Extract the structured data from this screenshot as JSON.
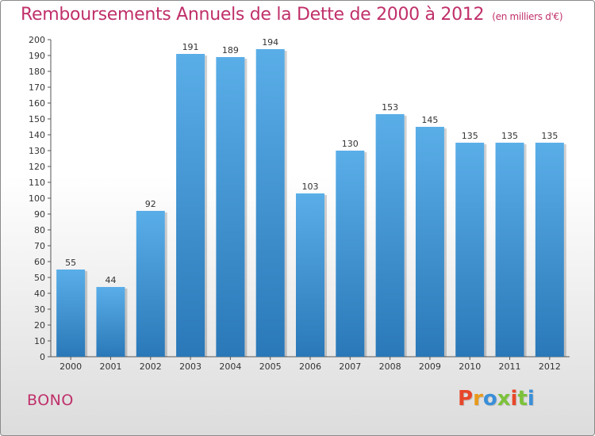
{
  "chart_data": {
    "type": "bar",
    "title": "Remboursements Annuels de la Dette de 2000 à 2012",
    "subtitle": "(en milliers d'€)",
    "categories": [
      "2000",
      "2001",
      "2002",
      "2003",
      "2004",
      "2005",
      "2006",
      "2007",
      "2008",
      "2009",
      "2010",
      "2011",
      "2012"
    ],
    "values": [
      55,
      44,
      92,
      191,
      189,
      194,
      103,
      130,
      153,
      145,
      135,
      135,
      135
    ],
    "ylim": [
      0,
      200
    ],
    "yticks": [
      0,
      10,
      20,
      30,
      40,
      50,
      60,
      70,
      80,
      90,
      100,
      110,
      120,
      130,
      140,
      150,
      160,
      170,
      180,
      190,
      200
    ],
    "grid": false,
    "colors": {
      "bar_top": "#5aaee8",
      "bar_bottom": "#2a78b8",
      "title": "#c0306a"
    }
  },
  "footer": {
    "commune": "BONO",
    "logo": "Proxiti"
  },
  "colors": {
    "logo_letters": [
      "#e8472a",
      "#e89a1a",
      "#3a8fd8",
      "#7cc23a",
      "#e8472a",
      "#7cc23a",
      "#3a8fd8"
    ]
  }
}
